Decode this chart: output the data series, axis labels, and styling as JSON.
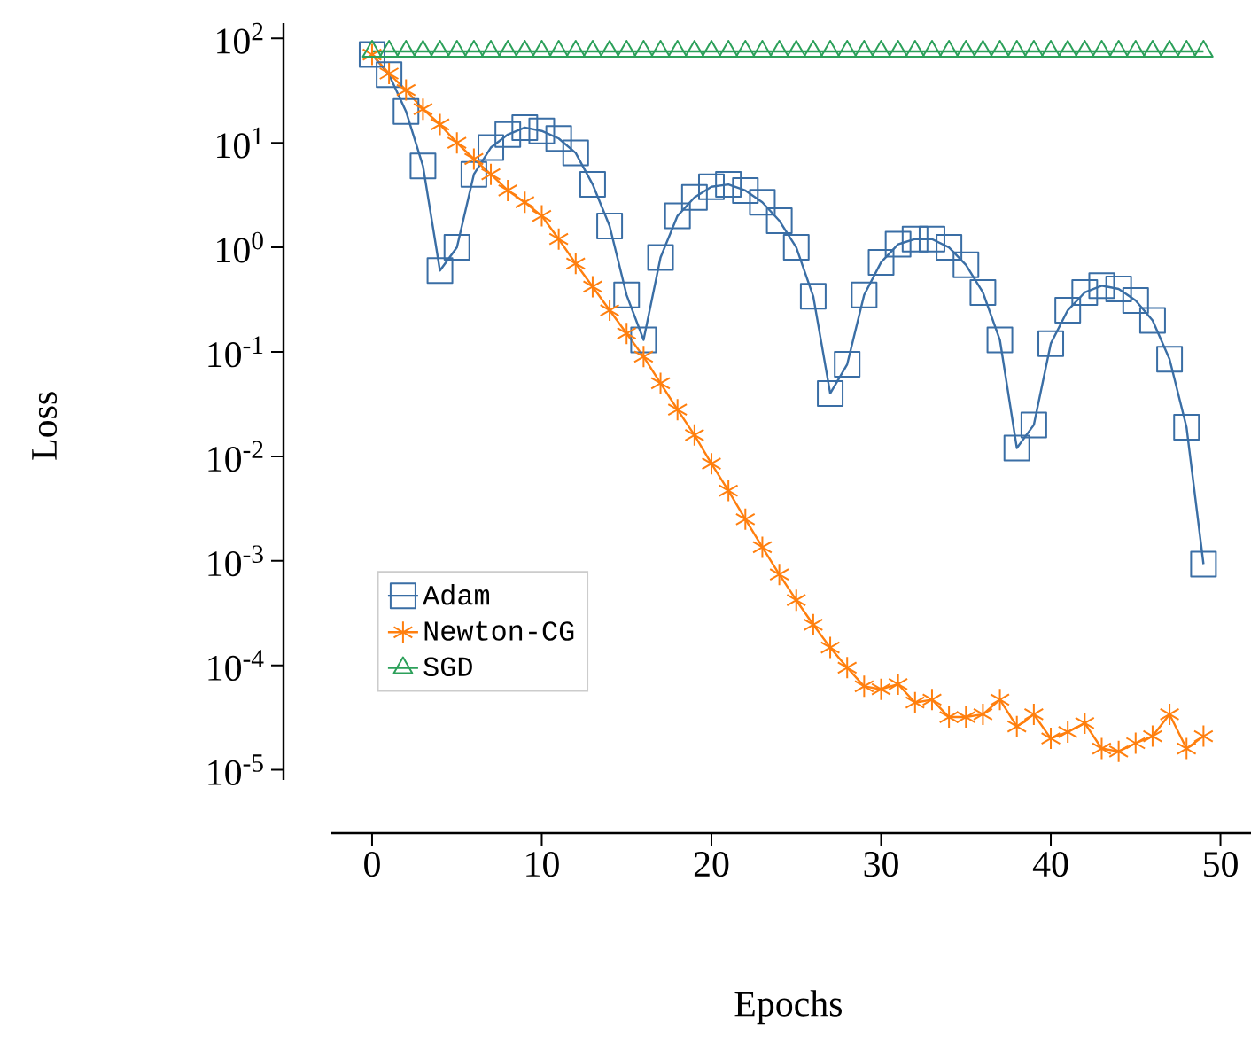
{
  "chart_data": {
    "type": "line",
    "xlabel": "Epochs",
    "ylabel": "Loss",
    "log": "y",
    "grid": false,
    "legend": "bottom left",
    "xlim": [
      -2.4,
      51.8
    ],
    "xticks": [
      0,
      10,
      20,
      30,
      40,
      50
    ],
    "ylim": [
      8e-06,
      140
    ],
    "yticks": [
      {
        "value": 1e-05,
        "label": "10$^{-5}$"
      },
      {
        "value": 0.0001,
        "label": "10$^{-4}$"
      },
      {
        "value": 0.001,
        "label": "10$^{-3}$"
      },
      {
        "value": 0.01,
        "label": "10$^{-2}$"
      },
      {
        "value": 0.1,
        "label": "10$^{-1}$"
      },
      {
        "value": 1,
        "label": "10$^{0}$"
      },
      {
        "value": 10,
        "label": "10$^{1}$"
      },
      {
        "value": 100,
        "label": "10$^{2}$"
      }
    ],
    "x": [
      0,
      1,
      2,
      3,
      4,
      5,
      6,
      7,
      8,
      9,
      10,
      11,
      12,
      13,
      14,
      15,
      16,
      17,
      18,
      19,
      20,
      21,
      22,
      23,
      24,
      25,
      26,
      27,
      28,
      29,
      30,
      31,
      32,
      33,
      34,
      35,
      36,
      37,
      38,
      39,
      40,
      41,
      42,
      43,
      44,
      45,
      46,
      47,
      48,
      49
    ],
    "series": [
      {
        "name": "Adam",
        "color": "#3a6ea5",
        "marker": "square",
        "values": [
          70,
          45,
          20,
          6,
          0.6,
          1.0,
          5,
          9,
          12,
          14,
          13,
          11,
          8,
          4,
          1.6,
          0.35,
          0.13,
          0.8,
          2,
          3,
          3.8,
          4,
          3.5,
          2.7,
          1.8,
          1.0,
          0.34,
          0.04,
          0.076,
          0.35,
          0.72,
          1.07,
          1.2,
          1.2,
          1.0,
          0.68,
          0.37,
          0.13,
          0.012,
          0.02,
          0.12,
          0.25,
          0.37,
          0.43,
          0.4,
          0.31,
          0.2,
          0.085,
          0.019,
          0.00093
        ]
      },
      {
        "name": "Newton-CG",
        "color": "#ff7f0e",
        "marker": "cross",
        "values": [
          70,
          46,
          32,
          21,
          15,
          10,
          7,
          5,
          3.5,
          2.7,
          2.0,
          1.2,
          0.7,
          0.42,
          0.25,
          0.15,
          0.09,
          0.05,
          0.028,
          0.016,
          0.0085,
          0.0047,
          0.0025,
          0.00135,
          0.00074,
          0.00042,
          0.000245,
          0.000148,
          9.5e-05,
          6.3e-05,
          5.9e-05,
          6.6e-05,
          4.4e-05,
          4.7e-05,
          3.2e-05,
          3.2e-05,
          3.4e-05,
          4.7e-05,
          2.6e-05,
          3.4e-05,
          2e-05,
          2.3e-05,
          2.8e-05,
          1.6e-05,
          1.5e-05,
          1.8e-05,
          2.1e-05,
          3.4e-05,
          1.6e-05,
          2.1e-05
        ]
      },
      {
        "name": "SGD",
        "color": "#2ca05a",
        "marker": "triangle",
        "values": [
          75,
          75,
          75,
          75,
          75,
          75,
          75,
          75,
          75,
          75,
          75,
          75,
          75,
          75,
          75,
          75,
          75,
          75,
          75,
          75,
          75,
          75,
          75,
          75,
          75,
          75,
          75,
          75,
          75,
          75,
          75,
          75,
          75,
          75,
          75,
          75,
          75,
          75,
          75,
          75,
          75,
          75,
          75,
          75,
          75,
          75,
          75,
          75,
          75,
          75
        ]
      }
    ]
  }
}
